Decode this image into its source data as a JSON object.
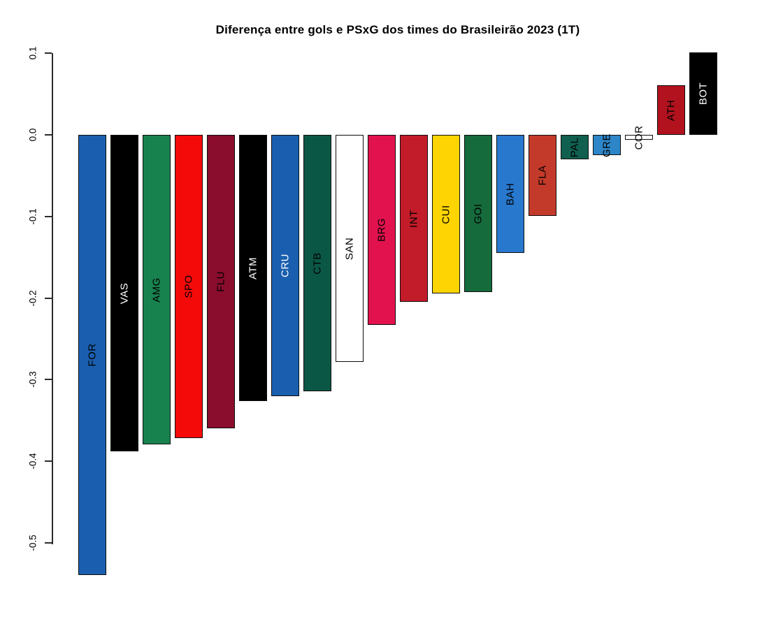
{
  "title": "Diferença entre gols e PSxG dos times do Brasileirão 2023 (1T)",
  "chart_data": {
    "type": "bar",
    "orientation": "vertical",
    "title": "Diferença entre gols e PSxG dos times do Brasileirão 2023 (1T)",
    "xlabel": "",
    "ylabel": "",
    "grid": false,
    "legend": "none",
    "background": "#FFFFFF",
    "axis_color": "#2B2B2B",
    "ylim": [
      -0.55,
      0.12
    ],
    "yticks": [
      {
        "label": "0.1",
        "value": 0.1
      },
      {
        "label": "0.0",
        "value": 0.0
      },
      {
        "label": "-0.1",
        "value": -0.1
      },
      {
        "label": "-0.2",
        "value": -0.2
      },
      {
        "label": "-0.3",
        "value": -0.3
      },
      {
        "label": "-0.4",
        "value": -0.4
      },
      {
        "label": "-0.5",
        "value": -0.5
      }
    ],
    "categories": [
      "FOR",
      "VAS",
      "AMG",
      "SPO",
      "FLU",
      "ATM",
      "CRU",
      "CTB",
      "SAN",
      "BRG",
      "INT",
      "CUI",
      "GOI",
      "BAH",
      "FLA",
      "PAL",
      "GRE",
      "COR",
      "ATH",
      "BOT"
    ],
    "values": [
      -0.539,
      -0.388,
      -0.379,
      -0.372,
      -0.36,
      -0.326,
      -0.32,
      -0.314,
      -0.278,
      -0.233,
      -0.205,
      -0.194,
      -0.193,
      -0.145,
      -0.099,
      -0.03,
      -0.025,
      -0.006,
      0.061,
      0.101
    ],
    "bar_colors": [
      "#1A5FAF",
      "#000000",
      "#18824F",
      "#F50A0A",
      "#8A0D2E",
      "#000000",
      "#1A5FAF",
      "#0B5746",
      "#FFFFFF",
      "#E2124E",
      "#C21B2A",
      "#FED402",
      "#156B3B",
      "#2878CE",
      "#C43A2A",
      "#11604F",
      "#2C86C8",
      "#FFFFFF",
      "#B2121E",
      "#000000"
    ],
    "label_colors": [
      "#000000",
      "#FFFFFF",
      "#000000",
      "#000000",
      "#000000",
      "#FFFFFF",
      "#FFFFFF",
      "#000000",
      "#000000",
      "#000000",
      "#000000",
      "#000000",
      "#000000",
      "#000000",
      "#000000",
      "#000000",
      "#000000",
      "#000000",
      "#000000",
      "#FFFFFF"
    ]
  }
}
